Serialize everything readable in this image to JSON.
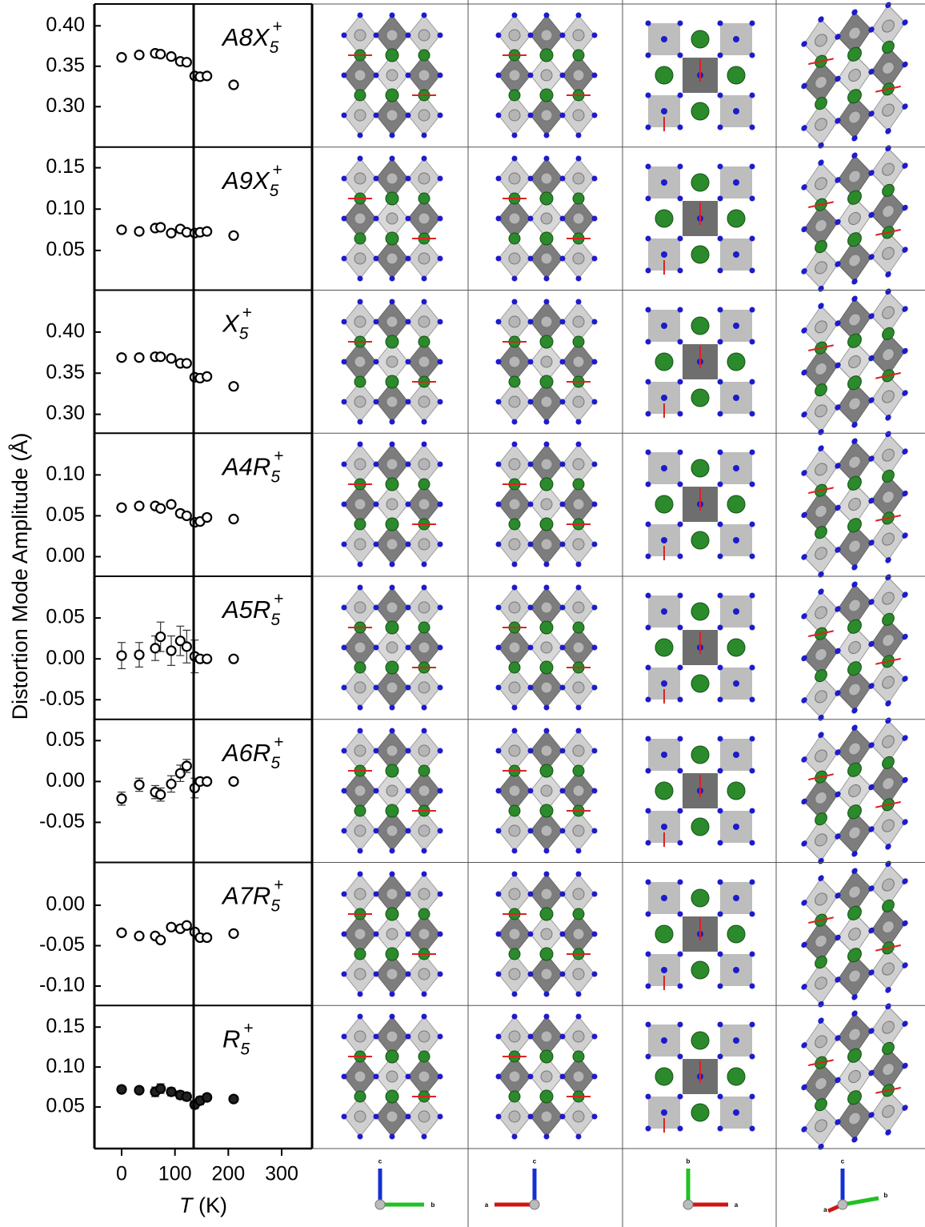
{
  "y_label": "Distortion Mode Amplitude (Å)",
  "x_label_symbol": "T",
  "x_label_unit": "(K)",
  "xlim": [
    -51,
    357
  ],
  "xticks": [
    0,
    100,
    200,
    300
  ],
  "transition_T": 135,
  "chart_data": [
    {
      "type": "scatter",
      "mode": {
        "name": "A8X",
        "sub": "5",
        "sup": "+"
      },
      "marker": "open",
      "x": [
        0,
        33,
        63,
        73,
        93,
        110,
        122,
        137,
        147,
        160,
        210
      ],
      "values": [
        0.361,
        0.364,
        0.366,
        0.365,
        0.362,
        0.356,
        0.355,
        0.338,
        0.337,
        0.338,
        0.327
      ],
      "errors": [
        0.003,
        0.003,
        0.003,
        0.003,
        0.003,
        0.003,
        0.003,
        0.003,
        0.003,
        0.003,
        0.003
      ],
      "ylim": [
        0.25,
        0.427
      ],
      "yticks": [
        {
          "value": 0.3,
          "label": "0.30"
        },
        0.35,
        {
          "value": 0.4,
          "label": "0.40"
        }
      ]
    },
    {
      "type": "scatter",
      "mode": {
        "name": "A9X",
        "sub": "5",
        "sup": "+"
      },
      "marker": "open",
      "x": [
        0,
        33,
        63,
        73,
        93,
        110,
        122,
        137,
        147,
        160,
        210
      ],
      "values": [
        0.075,
        0.073,
        0.077,
        0.078,
        0.071,
        0.076,
        0.072,
        0.071,
        0.072,
        0.073,
        0.068
      ],
      "errors": [
        0.004,
        0.003,
        0.003,
        0.003,
        0.003,
        0.003,
        0.003,
        0.003,
        0.003,
        0.003,
        0.003
      ],
      "ylim": [
        0.002,
        0.175
      ],
      "yticks": [
        0.05,
        {
          "value": 0.1,
          "label": "0.10"
        },
        0.15
      ]
    },
    {
      "type": "scatter",
      "mode": {
        "name": "X",
        "sub": "5",
        "sup": "+"
      },
      "marker": "open",
      "x": [
        0,
        33,
        63,
        73,
        93,
        110,
        122,
        137,
        147,
        160,
        210
      ],
      "values": [
        0.369,
        0.369,
        0.37,
        0.37,
        0.368,
        0.362,
        0.362,
        0.345,
        0.344,
        0.346,
        0.334
      ],
      "errors": [
        0.003,
        0.003,
        0.003,
        0.003,
        0.003,
        0.003,
        0.003,
        0.003,
        0.003,
        0.003,
        0.003
      ],
      "ylim": [
        0.277,
        0.451
      ],
      "yticks": [
        {
          "value": 0.3,
          "label": "0.30"
        },
        0.35,
        {
          "value": 0.4,
          "label": "0.40"
        }
      ]
    },
    {
      "type": "scatter",
      "mode": {
        "name": "A4R",
        "sub": "5",
        "sup": "+"
      },
      "marker": "open",
      "x": [
        0,
        33,
        63,
        73,
        93,
        110,
        122,
        137,
        147,
        160,
        210
      ],
      "values": [
        0.06,
        0.062,
        0.062,
        0.059,
        0.064,
        0.053,
        0.05,
        0.042,
        0.043,
        0.048,
        0.046
      ],
      "errors": [
        0.003,
        0.003,
        0.003,
        0.003,
        0.004,
        0.004,
        0.004,
        0.004,
        0.004,
        0.004,
        0.003
      ],
      "ylim": [
        -0.024,
        0.151
      ],
      "yticks": [
        {
          "value": 0,
          "label": "0.00"
        },
        0.05,
        {
          "value": 0.1,
          "label": "0.10"
        }
      ]
    },
    {
      "type": "scatter",
      "mode": {
        "name": "A5R",
        "sub": "5",
        "sup": "+"
      },
      "marker": "open",
      "x": [
        0,
        33,
        63,
        73,
        93,
        110,
        122,
        137,
        147,
        160,
        210
      ],
      "values": [
        0.004,
        0.005,
        0.013,
        0.027,
        0.01,
        0.022,
        0.015,
        0.003,
        0,
        0,
        0
      ],
      "errors": [
        0.016,
        0.015,
        0.015,
        0.018,
        0.018,
        0.018,
        0.02,
        0.02,
        0.002,
        0.002,
        0.002
      ],
      "ylim": [
        -0.074,
        0.101
      ],
      "yticks": [
        -0.05,
        {
          "value": 0,
          "label": "0.00"
        },
        0.05
      ]
    },
    {
      "type": "scatter",
      "mode": {
        "name": "A6R",
        "sub": "5",
        "sup": "+"
      },
      "marker": "open",
      "x": [
        0,
        33,
        63,
        73,
        93,
        110,
        122,
        137,
        147,
        160,
        210
      ],
      "values": [
        -0.021,
        -0.004,
        -0.013,
        -0.016,
        -0.003,
        0.01,
        0.019,
        -0.008,
        0,
        0,
        0
      ],
      "errors": [
        0.008,
        0.008,
        0.008,
        0.008,
        0.01,
        0.01,
        0.008,
        0.012,
        0.002,
        0.002,
        0.002
      ],
      "ylim": [
        -0.099,
        0.076
      ],
      "yticks": [
        -0.05,
        {
          "value": 0,
          "label": "0.00"
        },
        0.05
      ]
    },
    {
      "type": "scatter",
      "mode": {
        "name": "A7R",
        "sub": "5",
        "sup": "+"
      },
      "marker": "open",
      "x": [
        0,
        33,
        63,
        73,
        93,
        110,
        122,
        137,
        147,
        160,
        210
      ],
      "values": [
        -0.034,
        -0.038,
        -0.038,
        -0.043,
        -0.027,
        -0.029,
        -0.025,
        -0.033,
        -0.04,
        -0.04,
        -0.035
      ],
      "errors": [
        0.003,
        0.003,
        0.003,
        0.004,
        0.004,
        0.004,
        0.004,
        0.004,
        0.004,
        0.004,
        0.003
      ],
      "ylim": [
        -0.124,
        0.053
      ],
      "yticks": [
        {
          "value": -0.1,
          "label": "-0.10"
        },
        -0.05,
        {
          "value": 0,
          "label": "0.00"
        }
      ]
    },
    {
      "type": "scatter",
      "mode": {
        "name": "R",
        "sub": "5",
        "sup": "+"
      },
      "marker": "filled",
      "x": [
        0,
        33,
        63,
        73,
        93,
        110,
        122,
        137,
        147,
        160,
        210
      ],
      "values": [
        0.072,
        0.071,
        0.069,
        0.073,
        0.069,
        0.065,
        0.063,
        0.053,
        0.058,
        0.062,
        0.06
      ],
      "errors": [
        0.004,
        0.003,
        0.006,
        0.006,
        0.005,
        0.005,
        0.005,
        0.005,
        0.005,
        0.004,
        0.003
      ],
      "ylim": [
        -0.002,
        0.177
      ],
      "yticks": [
        0.05,
        {
          "value": 0.1,
          "label": "0.10"
        },
        0.15
      ]
    }
  ],
  "axis_triads": [
    {
      "labels": [
        "c",
        "b"
      ]
    },
    {
      "labels": [
        "c",
        "a"
      ]
    },
    {
      "labels": [
        "b",
        "a"
      ]
    },
    {
      "labels": [
        "c",
        "a",
        "b"
      ]
    }
  ]
}
